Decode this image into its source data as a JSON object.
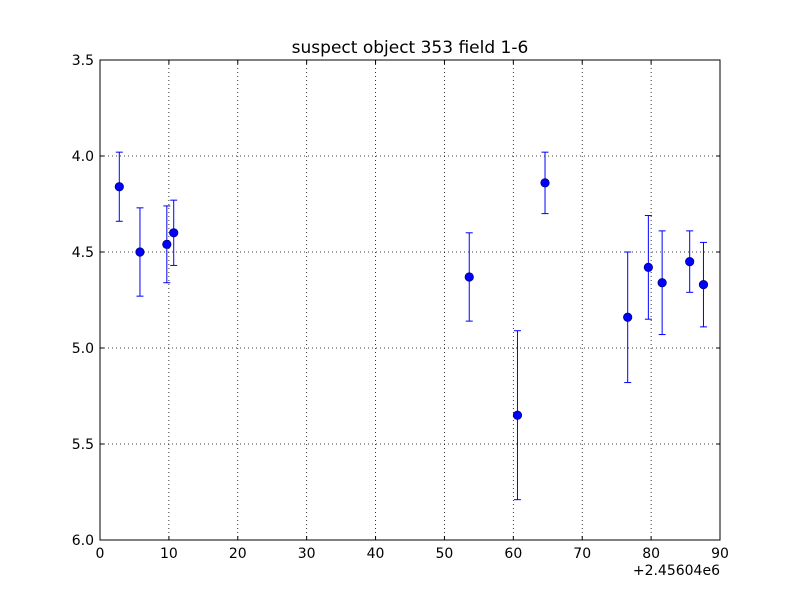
{
  "chart_data": {
    "type": "scatter",
    "title": "suspect object 353 field 1-6",
    "xlabel": "",
    "ylabel": "",
    "x_offset_label": "+2.45604e6",
    "xlim": [
      0,
      90
    ],
    "ylim": [
      3.5,
      6.0
    ],
    "y_inverted": true,
    "grid": true,
    "x_ticks": [
      "0",
      "10",
      "20",
      "30",
      "40",
      "50",
      "60",
      "70",
      "80",
      "90"
    ],
    "y_ticks": [
      "3.5",
      "4.0",
      "4.5",
      "5.0",
      "5.5",
      "6.0"
    ],
    "points": [
      {
        "x": 2.8,
        "y": 4.16,
        "err": 0.18
      },
      {
        "x": 5.8,
        "y": 4.5,
        "err": 0.23
      },
      {
        "x": 9.7,
        "y": 4.46,
        "err": 0.2
      },
      {
        "x": 10.7,
        "y": 4.4,
        "err": 0.17
      },
      {
        "x": 53.6,
        "y": 4.63,
        "err": 0.23
      },
      {
        "x": 60.6,
        "y": 5.35,
        "err": 0.44
      },
      {
        "x": 64.6,
        "y": 4.14,
        "err": 0.16
      },
      {
        "x": 76.6,
        "y": 4.84,
        "err": 0.34
      },
      {
        "x": 79.6,
        "y": 4.58,
        "err": 0.27
      },
      {
        "x": 81.6,
        "y": 4.66,
        "err": 0.27
      },
      {
        "x": 85.6,
        "y": 4.55,
        "err": 0.16
      },
      {
        "x": 87.6,
        "y": 4.67,
        "err": 0.22
      }
    ],
    "colors": {
      "marker": "#0000ff",
      "errorbar": "#0000ff"
    }
  }
}
